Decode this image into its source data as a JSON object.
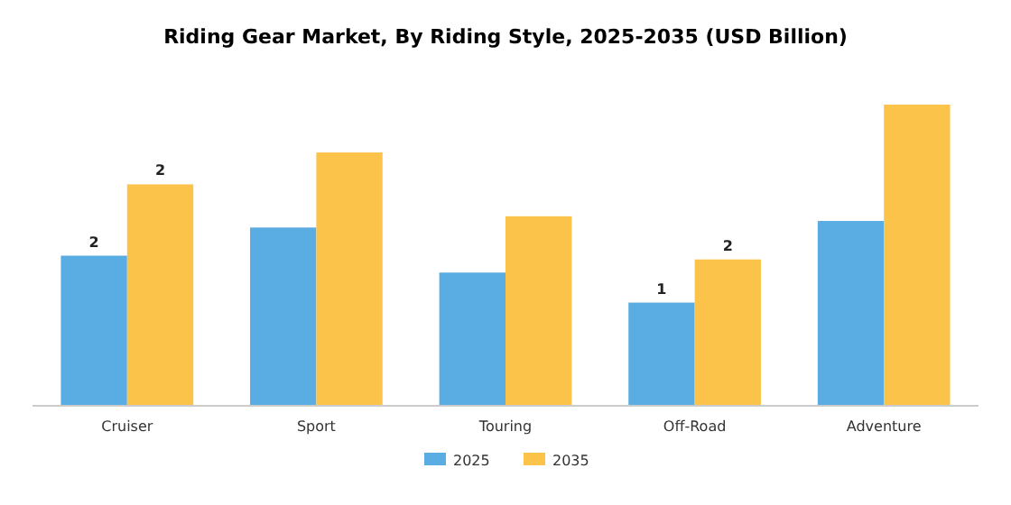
{
  "chart_data": {
    "type": "bar",
    "title": "Riding Gear Market, By Riding Style, 2025-2035 (USD Billion)",
    "categories": [
      "Cruiser",
      "Sport",
      "Touring",
      "Off-Road",
      "Adventure"
    ],
    "legend": "bottom",
    "series": [
      {
        "name": "2025",
        "color": "#5aade3",
        "values": [
          1.6,
          1.9,
          1.42,
          1.1,
          1.97
        ],
        "value_labels": [
          "2",
          null,
          null,
          "1",
          null
        ]
      },
      {
        "name": "2035",
        "color": "#fbc34a",
        "values": [
          2.36,
          2.7,
          2.02,
          1.56,
          3.21
        ],
        "value_labels": [
          "2",
          null,
          null,
          "2",
          null
        ]
      }
    ]
  }
}
